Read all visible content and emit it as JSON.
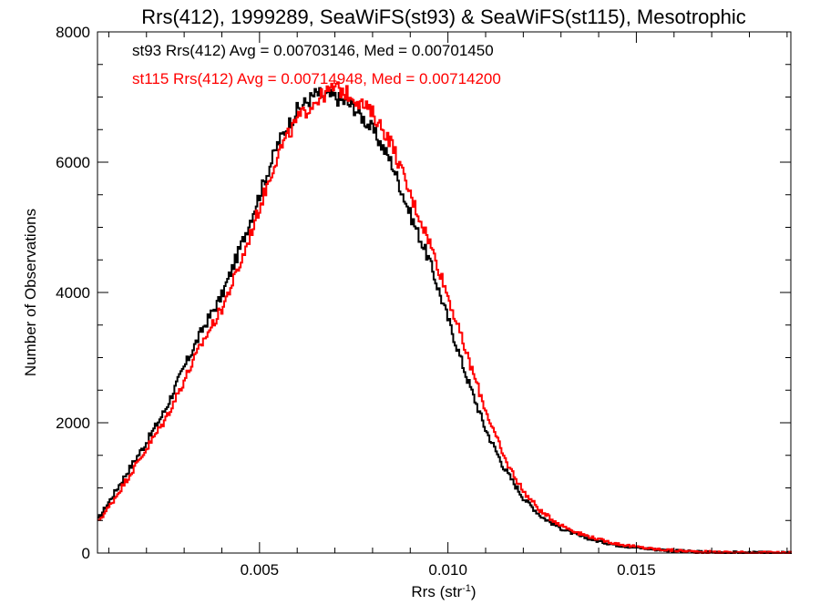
{
  "chart_data": {
    "type": "line",
    "title": "Rrs(412), 1999289, SeaWiFS(st93) & SeaWiFS(st115), Mesotrophic",
    "xlabel": "Rrs (str",
    "xlabel_sup": "-1",
    "xlabel_end": ")",
    "ylabel": "Number of Observations",
    "xlim": [
      0.0007,
      0.0191
    ],
    "ylim": [
      0,
      8000
    ],
    "x_ticks": [
      0.005,
      0.01,
      0.015
    ],
    "x_tick_labels": [
      "0.005",
      "0.010",
      "0.015"
    ],
    "y_ticks": [
      0,
      2000,
      4000,
      6000,
      8000
    ],
    "y_tick_labels": [
      "0",
      "2000",
      "4000",
      "6000",
      "8000"
    ],
    "grid": false,
    "annotations": [
      {
        "text": "st93 Rrs(412) Avg = 0.00703146, Med = 0.00701450",
        "color": "#000000"
      },
      {
        "text": "st115 Rrs(412) Avg = 0.00714948, Med = 0.00714200",
        "color": "#ff0000"
      }
    ],
    "x": [
      0.0007,
      0.001,
      0.0015,
      0.002,
      0.0025,
      0.003,
      0.0035,
      0.004,
      0.0045,
      0.005,
      0.0055,
      0.006,
      0.0065,
      0.007,
      0.0075,
      0.008,
      0.0085,
      0.009,
      0.0095,
      0.01,
      0.0105,
      0.011,
      0.0115,
      0.012,
      0.0125,
      0.013,
      0.0135,
      0.014,
      0.0145,
      0.015,
      0.0155,
      0.016,
      0.0165,
      0.017,
      0.0175,
      0.018,
      0.0185,
      0.0191
    ],
    "series": [
      {
        "name": "st93",
        "color": "#000000",
        "values": [
          500,
          780,
          1250,
          1700,
          2200,
          2850,
          3450,
          3950,
          4700,
          5500,
          6300,
          6800,
          7050,
          7000,
          6850,
          6500,
          6000,
          5200,
          4500,
          3600,
          2700,
          1900,
          1300,
          850,
          550,
          380,
          260,
          180,
          120,
          85,
          55,
          35,
          20,
          12,
          8,
          5,
          3,
          2
        ]
      },
      {
        "name": "st115",
        "color": "#ff0000",
        "values": [
          470,
          700,
          1150,
          1600,
          2050,
          2650,
          3250,
          3750,
          4450,
          5300,
          6150,
          6650,
          6950,
          7150,
          7000,
          6750,
          6300,
          5500,
          4800,
          3950,
          3050,
          2200,
          1450,
          950,
          620,
          430,
          300,
          210,
          140,
          95,
          60,
          40,
          22,
          14,
          9,
          5,
          3,
          2
        ]
      }
    ]
  }
}
